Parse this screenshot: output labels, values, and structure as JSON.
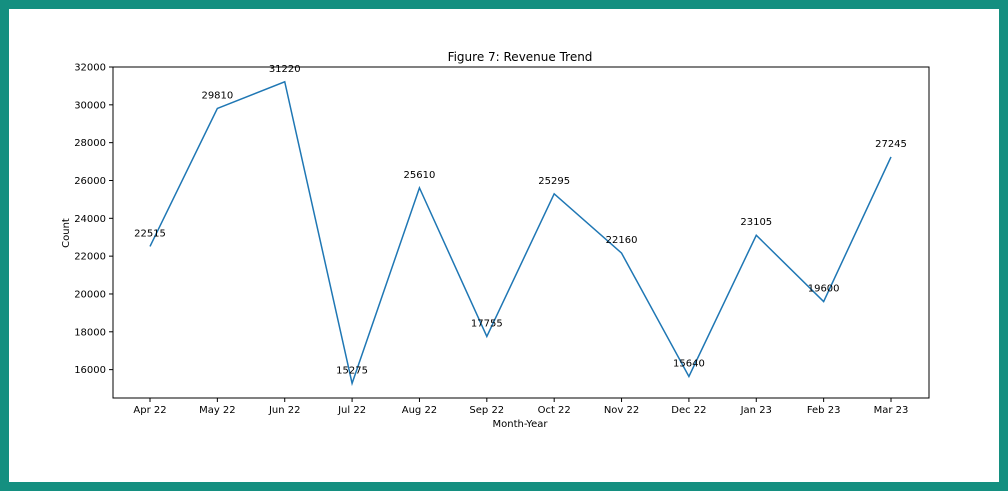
{
  "colors": {
    "frame_border": "#148f80",
    "background": "#ffffff",
    "line": "#1f77b4",
    "axis": "#000000"
  },
  "chart_data": {
    "type": "line",
    "title": "Figure 7: Revenue Trend",
    "xlabel": "Month-Year",
    "ylabel": "Count",
    "categories": [
      "Apr 22",
      "May 22",
      "Jun 22",
      "Jul 22",
      "Aug 22",
      "Sep 22",
      "Oct 22",
      "Nov 22",
      "Dec 22",
      "Jan 23",
      "Feb 23",
      "Mar 23"
    ],
    "series": [
      {
        "values": [
          22515,
          29810,
          31220,
          15275,
          25610,
          17755,
          25295,
          22160,
          15640,
          23105,
          19600,
          27245
        ]
      }
    ],
    "data_labels": [
      "22515",
      "29810",
      "31220",
      "15275",
      "25610",
      "17755",
      "25295",
      "22160",
      "15640",
      "23105",
      "19600",
      "27245"
    ],
    "yticks": [
      16000,
      18000,
      20000,
      22000,
      24000,
      26000,
      28000,
      30000,
      32000
    ],
    "ytick_labels": [
      "16000",
      "18000",
      "20000",
      "22000",
      "24000",
      "26000",
      "28000",
      "30000",
      "32000"
    ],
    "ylim": [
      14500,
      32000
    ],
    "grid": false,
    "legend": "none"
  }
}
